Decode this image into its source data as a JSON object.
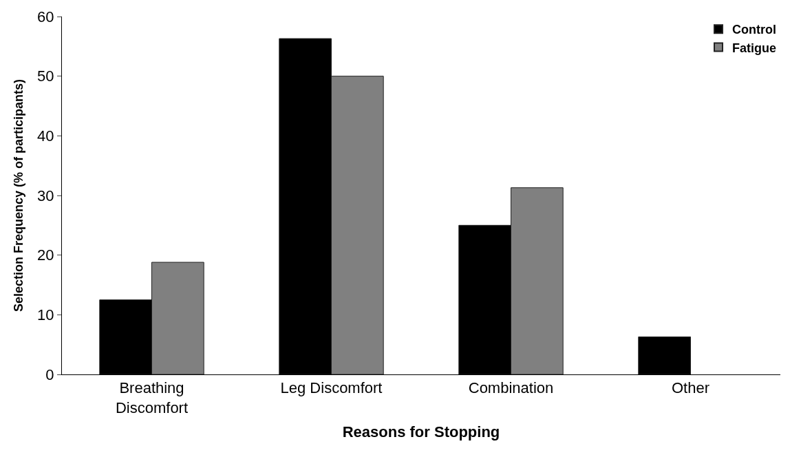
{
  "chart_data": {
    "type": "bar",
    "xlabel": "Reasons for Stopping",
    "ylabel": "Selection Frequency (% of participants)",
    "categories": [
      "Breathing Discomfort",
      "Leg Discomfort",
      "Combination",
      "Other"
    ],
    "series": [
      {
        "name": "Control",
        "color": "#000000",
        "values": [
          12.5,
          56.3,
          25,
          6.3
        ]
      },
      {
        "name": "Fatigue",
        "color": "#808080",
        "values": [
          18.8,
          50,
          31.3,
          null
        ]
      }
    ],
    "ylim": [
      0,
      60
    ],
    "yticks": [
      0,
      10,
      20,
      30,
      40,
      50,
      60
    ],
    "legend": "top right"
  }
}
